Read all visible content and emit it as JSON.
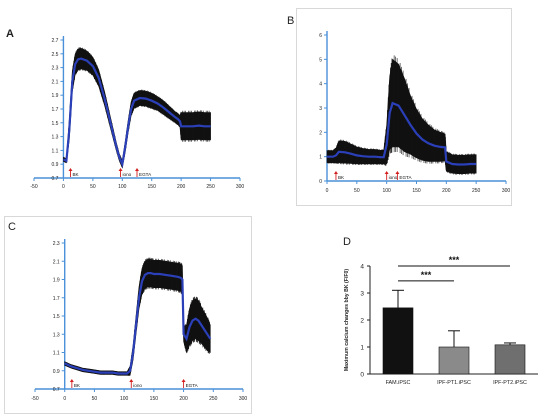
{
  "panels": [
    {
      "id": "A",
      "letter": "A"
    },
    {
      "id": "B",
      "letter": "B"
    },
    {
      "id": "C",
      "letter": "C"
    },
    {
      "id": "D",
      "letter": "D"
    }
  ],
  "colors": {
    "axis": "#4a90d9",
    "trace_band": "#111111",
    "trace_mean": "#2a3fb8",
    "marker_arrow": "#d42020",
    "bar_fam": "#111111",
    "bar_pt1": "#8a8a8a",
    "bar_pt2": "#6f6f6f"
  },
  "chart_data": [
    {
      "panel": "A",
      "type": "line",
      "xlim": [
        -50,
        300
      ],
      "ylim": [
        0.7,
        2.7
      ],
      "x_ticks": [
        "-50",
        "0",
        "50",
        "100",
        "150",
        "200",
        "250",
        "300"
      ],
      "y_ticks": [
        "0.7",
        "0.9",
        "1.1",
        "1.3",
        "1.5",
        "1.7",
        "1.9",
        "2.1",
        "2.3",
        "2.5",
        "2.7"
      ],
      "series": [
        {
          "x": [
            0,
            5,
            10,
            15,
            20,
            25,
            30,
            40,
            50,
            60,
            70,
            80,
            90,
            95,
            100,
            105,
            110,
            115,
            120,
            130,
            140,
            150,
            160,
            170,
            180,
            190,
            195,
            198,
            200,
            210,
            220,
            230,
            240,
            250
          ],
          "mean": [
            0.97,
            0.95,
            1.4,
            2.1,
            2.35,
            2.42,
            2.43,
            2.4,
            2.32,
            2.15,
            1.85,
            1.5,
            1.15,
            1.0,
            0.9,
            1.15,
            1.45,
            1.7,
            1.82,
            1.86,
            1.85,
            1.82,
            1.78,
            1.72,
            1.65,
            1.58,
            1.55,
            1.52,
            1.45,
            1.45,
            1.45,
            1.46,
            1.45,
            1.45
          ],
          "spread": [
            0.03,
            0.03,
            0.15,
            0.15,
            0.15,
            0.15,
            0.15,
            0.14,
            0.13,
            0.12,
            0.1,
            0.08,
            0.06,
            0.05,
            0.05,
            0.08,
            0.09,
            0.1,
            0.11,
            0.11,
            0.11,
            0.11,
            0.1,
            0.1,
            0.09,
            0.08,
            0.08,
            0.08,
            0.2,
            0.2,
            0.2,
            0.2,
            0.2,
            0.2
          ]
        }
      ],
      "markers": [
        {
          "label": "BK",
          "x": 12
        },
        {
          "label": "iono",
          "x": 97
        },
        {
          "label": "EGTA",
          "x": 125
        }
      ]
    },
    {
      "panel": "B",
      "type": "line",
      "xlim": [
        0,
        300
      ],
      "ylim": [
        0,
        6
      ],
      "x_ticks": [
        "0",
        "50",
        "100",
        "150",
        "200",
        "250",
        "300"
      ],
      "y_ticks": [
        "0",
        "1",
        "2",
        "3",
        "4",
        "5",
        "6"
      ],
      "series": [
        {
          "x": [
            0,
            10,
            15,
            20,
            30,
            40,
            50,
            60,
            70,
            80,
            90,
            95,
            100,
            105,
            110,
            120,
            130,
            140,
            150,
            160,
            170,
            180,
            190,
            198,
            200,
            210,
            220,
            230,
            240,
            250
          ],
          "mean": [
            1.0,
            1.0,
            1.05,
            1.2,
            1.18,
            1.12,
            1.05,
            1.02,
            1.0,
            1.0,
            0.98,
            0.98,
            1.5,
            2.8,
            3.2,
            3.1,
            2.7,
            2.3,
            1.95,
            1.7,
            1.55,
            1.45,
            1.4,
            1.38,
            0.8,
            0.7,
            0.68,
            0.68,
            0.7,
            0.7
          ],
          "spread": [
            0.25,
            0.25,
            0.3,
            0.45,
            0.45,
            0.4,
            0.35,
            0.32,
            0.3,
            0.3,
            0.28,
            0.28,
            0.8,
            1.5,
            1.8,
            1.7,
            1.5,
            1.2,
            1.0,
            0.85,
            0.75,
            0.65,
            0.6,
            0.55,
            0.4,
            0.38,
            0.38,
            0.38,
            0.38,
            0.38
          ]
        }
      ],
      "markers": [
        {
          "label": "BK",
          "x": 15
        },
        {
          "label": "iono",
          "x": 100
        },
        {
          "label": "EGTA",
          "x": 118
        }
      ]
    },
    {
      "panel": "C",
      "type": "line",
      "xlim": [
        -50,
        300
      ],
      "ylim": [
        0.7,
        2.3
      ],
      "x_ticks": [
        "-50",
        "0",
        "50",
        "100",
        "150",
        "200",
        "250",
        "300"
      ],
      "y_ticks": [
        "0.7",
        "0.9",
        "1.1",
        "1.3",
        "1.5",
        "1.7",
        "1.9",
        "2.1",
        "2.3"
      ],
      "series": [
        {
          "x": [
            0,
            10,
            20,
            30,
            40,
            50,
            60,
            70,
            80,
            90,
            100,
            105,
            110,
            115,
            120,
            125,
            130,
            135,
            140,
            145,
            150,
            160,
            170,
            180,
            190,
            195,
            198,
            200,
            205,
            210,
            215,
            220,
            225,
            230,
            240,
            245
          ],
          "mean": [
            0.98,
            0.95,
            0.93,
            0.91,
            0.9,
            0.89,
            0.88,
            0.88,
            0.88,
            0.87,
            0.87,
            0.87,
            0.9,
            1.1,
            1.4,
            1.7,
            1.88,
            1.95,
            1.97,
            1.97,
            1.96,
            1.96,
            1.95,
            1.94,
            1.93,
            1.92,
            1.9,
            1.3,
            1.25,
            1.38,
            1.45,
            1.47,
            1.45,
            1.4,
            1.3,
            1.25
          ],
          "spread": [
            0.02,
            0.02,
            0.02,
            0.02,
            0.02,
            0.02,
            0.02,
            0.02,
            0.02,
            0.02,
            0.02,
            0.02,
            0.05,
            0.08,
            0.1,
            0.12,
            0.14,
            0.15,
            0.15,
            0.15,
            0.15,
            0.15,
            0.15,
            0.15,
            0.15,
            0.15,
            0.15,
            0.08,
            0.15,
            0.2,
            0.22,
            0.22,
            0.22,
            0.2,
            0.18,
            0.15
          ]
        }
      ],
      "markers": [
        {
          "label": "BK",
          "x": 12
        },
        {
          "label": "iono",
          "x": 112
        },
        {
          "label": "EGTA",
          "x": 200
        }
      ]
    },
    {
      "panel": "D",
      "type": "bar",
      "ylabel": "Maximum calcium changes bby BK (F/F0)",
      "ylim": [
        0,
        4
      ],
      "y_ticks": [
        "0",
        "1",
        "2",
        "3",
        "4"
      ],
      "categories": [
        "FAM.iPSC",
        "IPF-PT1.iPSC",
        "IPF-PT2.iPSC"
      ],
      "values": [
        2.45,
        1.0,
        1.08
      ],
      "errors": [
        0.65,
        0.6,
        0.07
      ],
      "significance": [
        {
          "from": 0,
          "to": 1,
          "label": "***",
          "y": 3.45
        },
        {
          "from": 0,
          "to": 2,
          "label": "***",
          "y": 4.0
        }
      ]
    }
  ]
}
